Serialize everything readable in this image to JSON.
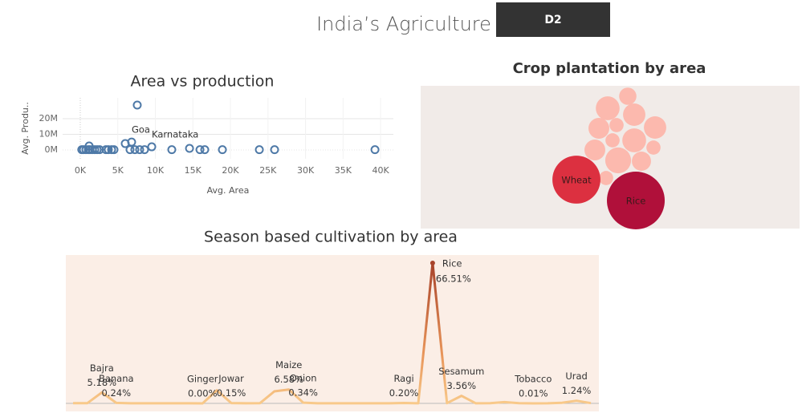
{
  "header": {
    "title": "India’s Agriculture",
    "button": "D2"
  },
  "chart_data": [
    {
      "type": "scatter",
      "title": "Area vs production",
      "x_label": "Avg. Area",
      "y_label": "Avg. Produ..",
      "color": "#4e79a7",
      "x": [
        200,
        430,
        750,
        1070,
        1180,
        1280,
        1600,
        1930,
        2250,
        2570,
        3420,
        3740,
        4170,
        4490,
        5990,
        6630,
        6840,
        7270,
        7590,
        7910,
        8560,
        9520,
        12190,
        14550,
        15940,
        16580,
        18930,
        23850,
        25880,
        39250
      ],
      "values": [
        200000,
        200000,
        200000,
        200000,
        2560000,
        200000,
        200000,
        200000,
        200000,
        200000,
        200000,
        200000,
        200000,
        200000,
        4100000,
        200000,
        5100000,
        200000,
        28700000,
        200000,
        200000,
        2050000,
        200000,
        1030000,
        200000,
        200000,
        200000,
        200000,
        200000,
        200000
      ],
      "annotations": [
        {
          "text": "Goa",
          "x": 6840,
          "y": 5100000
        },
        {
          "text": "Karnataka",
          "x": 9520,
          "y": 2050000
        }
      ],
      "xlim": [
        -2350,
        41700
      ],
      "xticks": [
        {
          "value": 0,
          "label": "0K"
        },
        {
          "value": 5000,
          "label": "5K"
        },
        {
          "value": 10000,
          "label": "10K"
        },
        {
          "value": 15000,
          "label": "15K"
        },
        {
          "value": 20000,
          "label": "20K"
        },
        {
          "value": 25000,
          "label": "25K"
        },
        {
          "value": 30000,
          "label": "30K"
        },
        {
          "value": 35000,
          "label": "35K"
        },
        {
          "value": 40000,
          "label": "40K"
        }
      ],
      "ylim": [
        -5600000,
        33300000
      ],
      "yticks": [
        {
          "value": 0,
          "label": "0M"
        },
        {
          "value": 10000000,
          "label": "10M"
        },
        {
          "value": 20000000,
          "label": "20M"
        }
      ],
      "grid": true
    },
    {
      "type": "bubble",
      "title": "Crop plantation by area",
      "categories": [
        null,
        null,
        null,
        null,
        null,
        null,
        null,
        null,
        null,
        null,
        null,
        null,
        null,
        "Wheat",
        "Rice"
      ],
      "values": [
        17,
        9,
        15,
        13,
        6,
        15,
        17,
        6,
        13,
        6,
        20,
        11,
        6,
        69,
        100
      ],
      "colors": [
        "#fcb9ae",
        "#fcb9ae",
        "#fcb9ae",
        "#fcb9ae",
        "#fcb9ae",
        "#fcb9ae",
        "#fcb9ae",
        "#fcb9ae",
        "#fcb9ae",
        "#fcb9ae",
        "#fcb9ae",
        "#fcb9ae",
        "#fcb9ae",
        "#dc3040",
        "#b0103a"
      ]
    },
    {
      "type": "line",
      "title": "Season based cultivation by area",
      "categories": [
        null,
        null,
        "Bajra",
        "Banana",
        null,
        null,
        null,
        null,
        null,
        "Ginger",
        null,
        "Jowar",
        null,
        null,
        null,
        "Maize",
        "Onion",
        null,
        null,
        null,
        null,
        null,
        null,
        "Ragi",
        null,
        "Rice",
        null,
        "Sesamum",
        null,
        null,
        null,
        null,
        "Tobacco",
        null,
        null,
        "Urad",
        null
      ],
      "values": [
        0.1,
        0.1,
        5.18,
        0.24,
        0.05,
        0.05,
        0.05,
        0.05,
        0.02,
        0.0,
        6.2,
        0.15,
        0.05,
        0.1,
        5.7,
        6.58,
        0.34,
        0.05,
        0.05,
        0.05,
        0.05,
        0.05,
        0.05,
        0.2,
        0.05,
        66.51,
        0.1,
        3.56,
        0.05,
        0.1,
        0.6,
        0.1,
        0.01,
        0.05,
        0.3,
        1.24,
        0.1
      ],
      "value_labels": [
        null,
        null,
        "5.18%",
        "0.24%",
        null,
        null,
        null,
        null,
        null,
        "0.00%",
        null,
        "0.15%",
        null,
        null,
        null,
        "6.58%",
        "0.34%",
        null,
        null,
        null,
        null,
        null,
        null,
        "0.20%",
        null,
        "66.51%",
        null,
        "3.56%",
        null,
        null,
        null,
        null,
        "0.01%",
        null,
        null,
        "1.24%",
        null
      ],
      "ylim": [
        -3.8,
        70.3
      ]
    }
  ]
}
